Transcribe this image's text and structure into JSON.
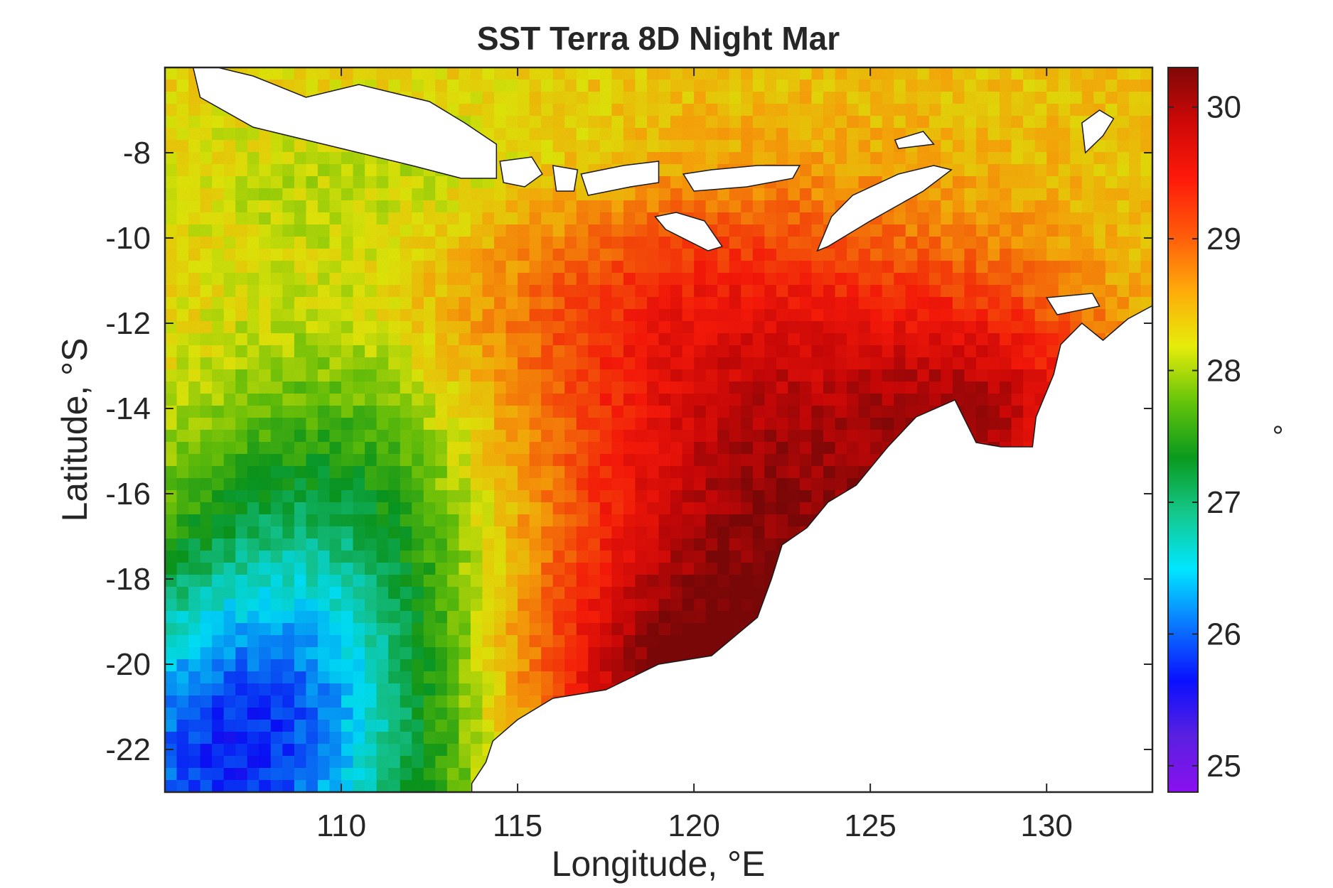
{
  "chart_data": {
    "type": "heatmap",
    "title": "SST Terra 8D Night Mar",
    "xlabel": "Longitude, °E",
    "ylabel": "Latitude, °S",
    "xlim": [
      105,
      133
    ],
    "ylim": [
      -23,
      -6
    ],
    "xticks": [
      110,
      115,
      120,
      125,
      130
    ],
    "yticks": [
      -22,
      -20,
      -18,
      -16,
      -14,
      -12,
      -10,
      -8
    ],
    "colorbar": {
      "label": "°",
      "range": [
        24.8,
        30.3
      ],
      "ticks": [
        25,
        26,
        27,
        28,
        29,
        30
      ],
      "colormap": [
        "#8a10f0",
        "#5a20e0",
        "#0a10ff",
        "#0a78ff",
        "#00e6ff",
        "#14c88c",
        "#0a9a1e",
        "#64c40a",
        "#e6ec0a",
        "#ffaa0a",
        "#ff5a0a",
        "#ff1a0a",
        "#d00808",
        "#800808"
      ]
    },
    "field_description": "Sea surface temperature field; warmest (~30) off the NW Australian coast (Kimberley/Timor Sea), ~28–29 across north of basin near Indonesian islands, coolest (~25) in the far south-west corner",
    "warm_pool": {
      "lon_range": [
        118,
        130
      ],
      "lat_range": [
        -21,
        -12
      ],
      "temp": 30
    },
    "cool_pool": {
      "lon_range": [
        105,
        110
      ],
      "lat_range": [
        -23,
        -19
      ],
      "temp": 25.2
    }
  },
  "colors": {
    "land": "#ffffff",
    "axes": "#262626"
  }
}
